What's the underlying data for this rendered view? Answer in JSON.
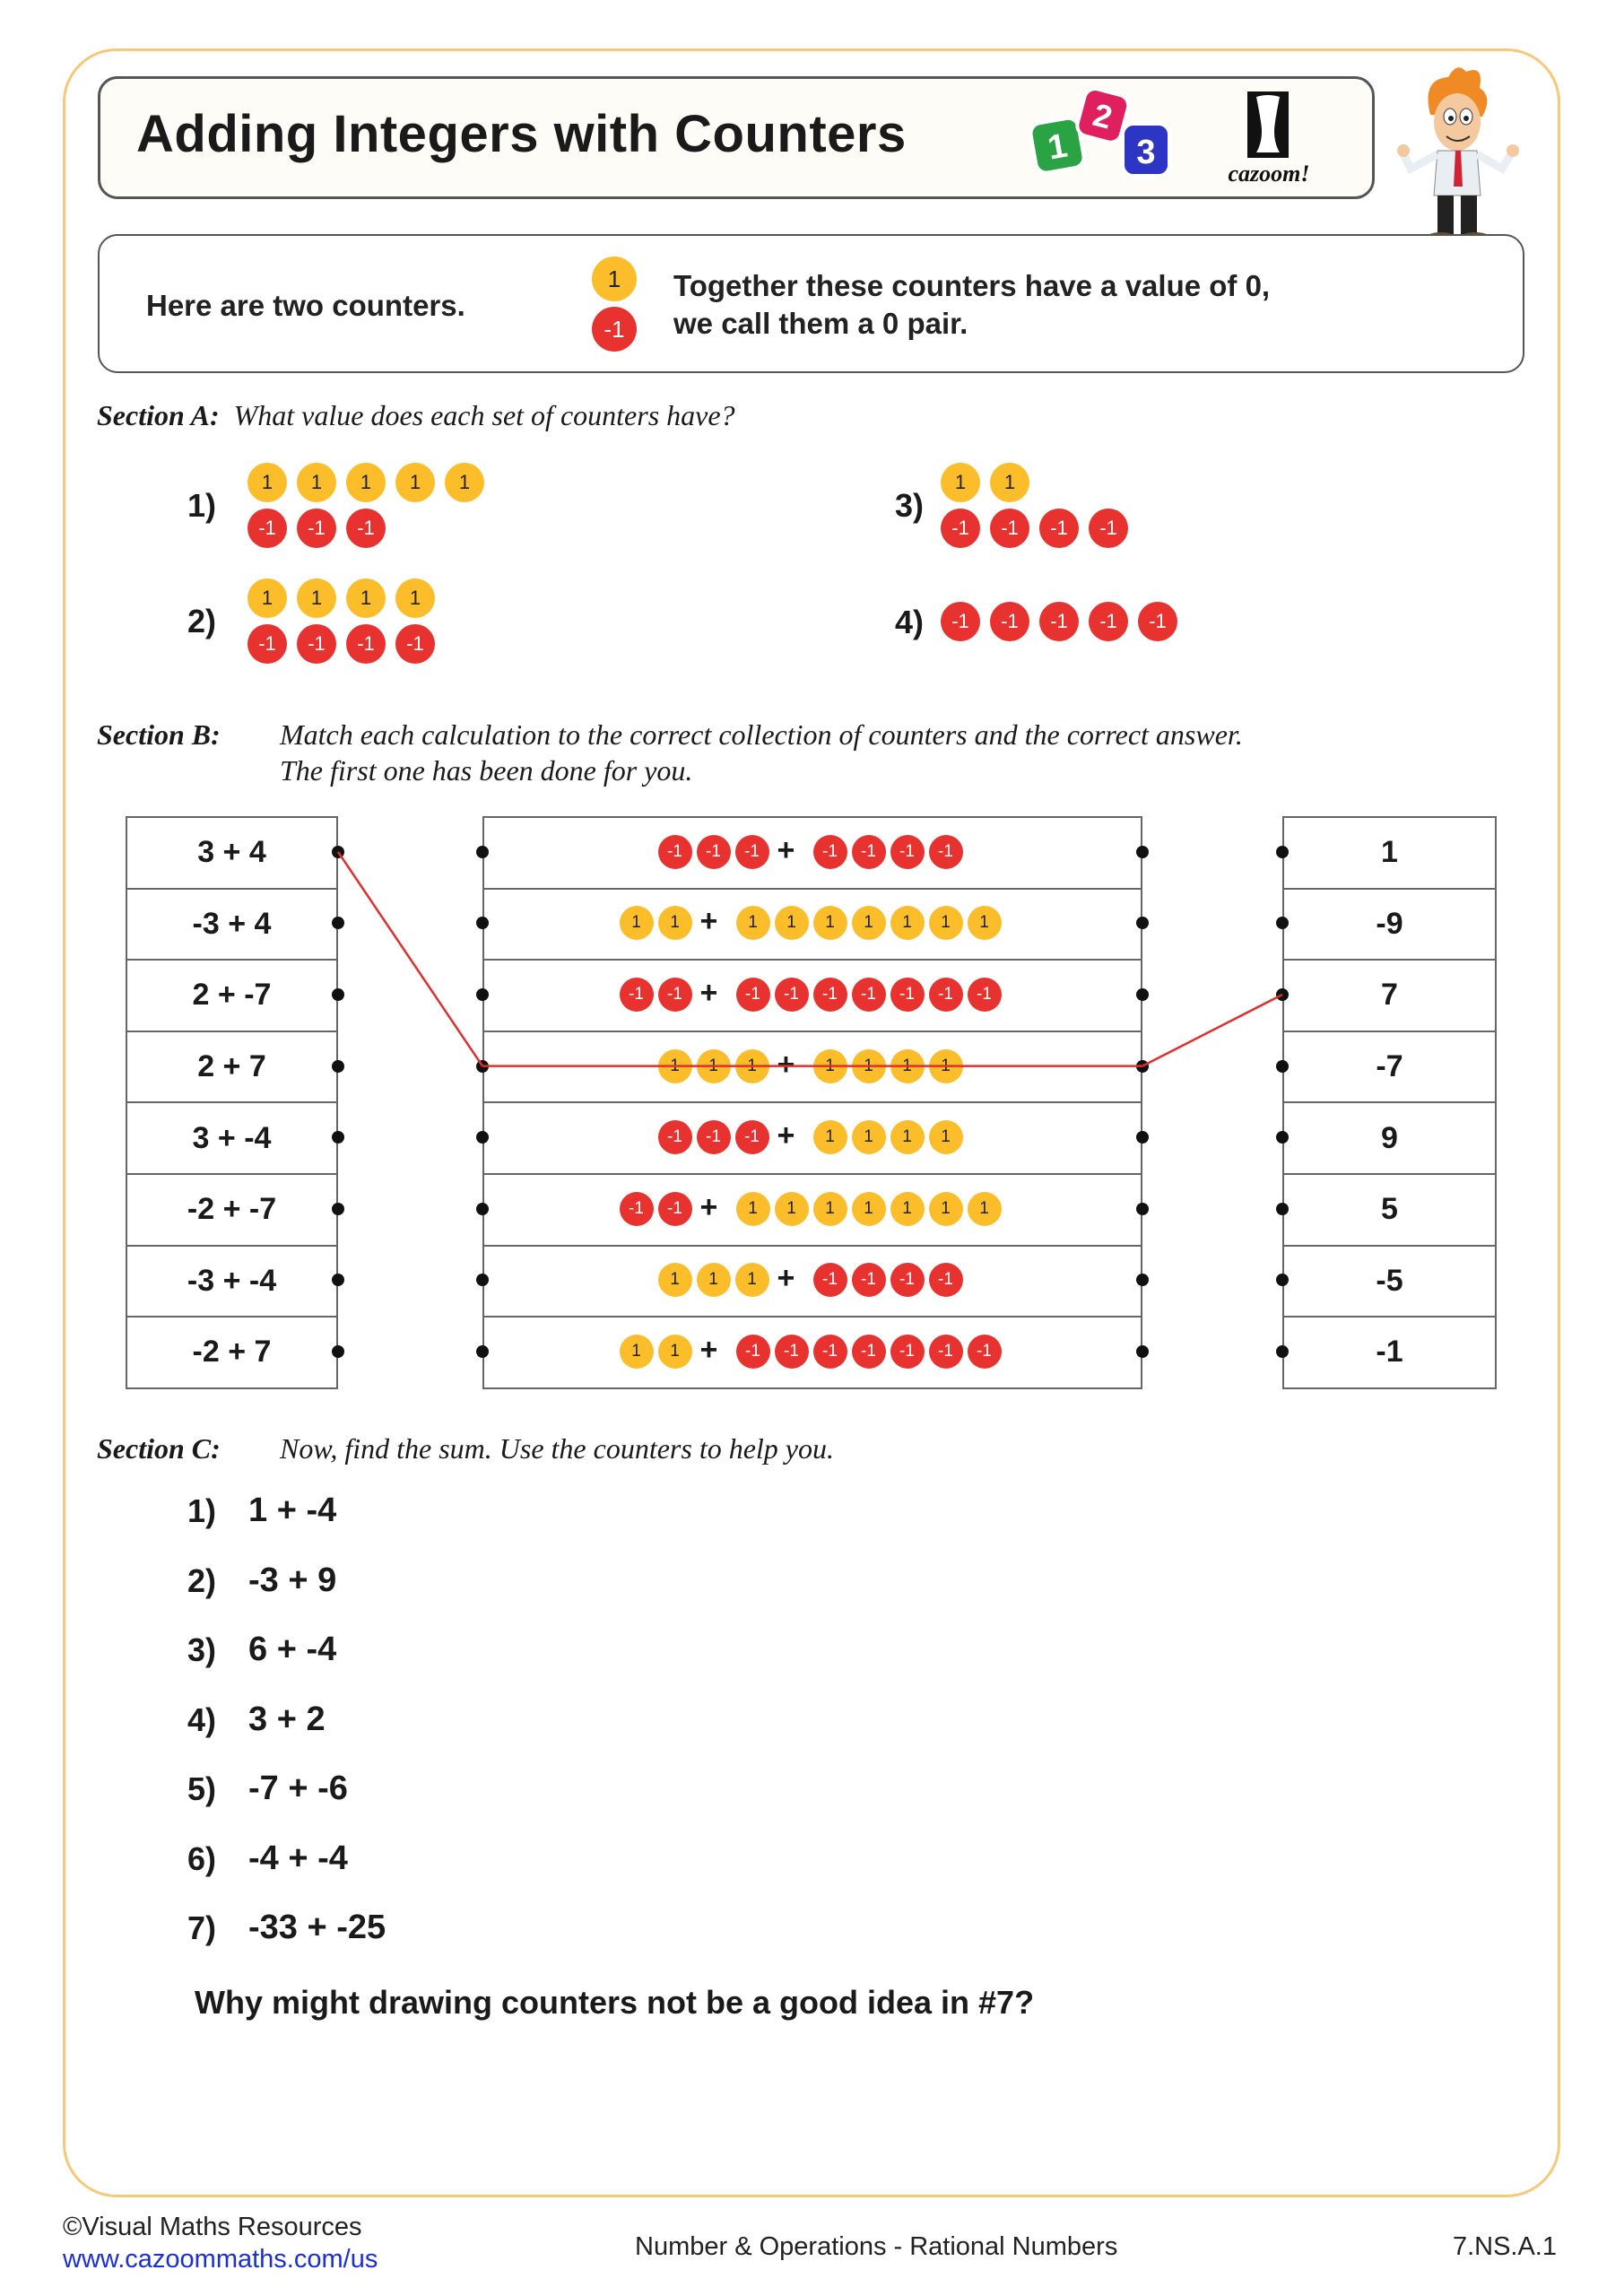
{
  "header": {
    "title": "Adding Integers with Counters",
    "logo_text": "cazoom!",
    "dice": [
      "1",
      "2",
      "3"
    ]
  },
  "intro": {
    "lead": "Here are two counters.",
    "counters": [
      "1",
      "-1"
    ],
    "line1": "Together these counters have a value of 0,",
    "line2": "we call them a 0 pair."
  },
  "colors": {
    "positive": "#fbbd2a",
    "negative": "#e8322f",
    "frame": "#f6c877",
    "match_line": "#e0302c"
  },
  "section_a": {
    "label": "Section A:",
    "instruction": "What value does each set of counters have?",
    "questions": [
      {
        "num": "1)",
        "rows": [
          {
            "sign": "1",
            "count": 5
          },
          {
            "sign": "-1",
            "count": 3
          }
        ]
      },
      {
        "num": "2)",
        "rows": [
          {
            "sign": "1",
            "count": 4
          },
          {
            "sign": "-1",
            "count": 4
          }
        ]
      },
      {
        "num": "3)",
        "rows": [
          {
            "sign": "1",
            "count": 2
          },
          {
            "sign": "-1",
            "count": 4
          }
        ]
      },
      {
        "num": "4)",
        "rows": [
          {
            "sign": "-1",
            "count": 5
          }
        ]
      }
    ]
  },
  "section_b": {
    "label": "Section B:",
    "instruction1": "Match each calculation to the correct collection of counters and the correct answer.",
    "instruction2": "The first one has been done for you.",
    "calculations": [
      "3 + 4",
      "-3 + 4",
      "2 + -7",
      "2 + 7",
      "3 + -4",
      "-2 + -7",
      "-3 + -4",
      "-2 + 7"
    ],
    "counter_sets": [
      {
        "a": {
          "sign": "-1",
          "count": 3
        },
        "b": {
          "sign": "-1",
          "count": 4
        }
      },
      {
        "a": {
          "sign": "1",
          "count": 2
        },
        "b": {
          "sign": "1",
          "count": 7
        }
      },
      {
        "a": {
          "sign": "-1",
          "count": 2
        },
        "b": {
          "sign": "-1",
          "count": 7
        }
      },
      {
        "a": {
          "sign": "1",
          "count": 3
        },
        "b": {
          "sign": "1",
          "count": 4
        }
      },
      {
        "a": {
          "sign": "-1",
          "count": 3
        },
        "b": {
          "sign": "1",
          "count": 4
        }
      },
      {
        "a": {
          "sign": "-1",
          "count": 2
        },
        "b": {
          "sign": "1",
          "count": 7
        }
      },
      {
        "a": {
          "sign": "1",
          "count": 3
        },
        "b": {
          "sign": "-1",
          "count": 4
        }
      },
      {
        "a": {
          "sign": "1",
          "count": 2
        },
        "b": {
          "sign": "-1",
          "count": 7
        }
      }
    ],
    "plus": "+",
    "answers": [
      "1",
      "-9",
      "7",
      "-7",
      "9",
      "5",
      "-5",
      "-1"
    ],
    "example_match": {
      "calculation": 0,
      "counter_set": 3,
      "answer": 2
    }
  },
  "section_c": {
    "label": "Section C:",
    "instruction": "Now, find the sum.  Use the counters to help you.",
    "items": [
      {
        "num": "1)",
        "expr": "1 + -4"
      },
      {
        "num": "2)",
        "expr": "-3 + 9"
      },
      {
        "num": "3)",
        "expr": "6 + -4"
      },
      {
        "num": "4)",
        "expr": "3 + 2"
      },
      {
        "num": "5)",
        "expr": "-7 + -6"
      },
      {
        "num": "6)",
        "expr": "-4 + -4"
      },
      {
        "num": "7)",
        "expr": "-33 + -25"
      }
    ],
    "question": "Why might drawing counters not be a good idea in #7?"
  },
  "footer": {
    "copyright": "©Visual Maths Resources",
    "link": "www.cazoommaths.com/us",
    "topic": "Number & Operations - Rational Numbers",
    "code": "7.NS.A.1"
  }
}
